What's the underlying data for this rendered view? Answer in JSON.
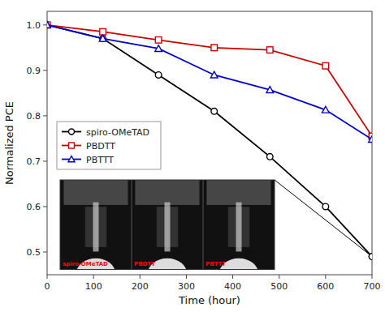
{
  "chart_data": {
    "type": "line",
    "x": [
      0,
      120,
      240,
      360,
      480,
      600,
      700
    ],
    "series": [
      {
        "name": "spiro-OMeTAD",
        "color": "#000000",
        "marker": "circle",
        "values": [
          1.0,
          0.97,
          0.89,
          0.81,
          0.71,
          0.6,
          0.49
        ]
      },
      {
        "name": "PBDTT",
        "color": "#cc0000",
        "marker": "square",
        "values": [
          1.0,
          0.985,
          0.967,
          0.95,
          0.945,
          0.91,
          0.755
        ]
      },
      {
        "name": "PBTTT",
        "color": "#0000cc",
        "marker": "triangle",
        "values": [
          1.0,
          0.97,
          0.948,
          0.89,
          0.857,
          0.813,
          0.748
        ]
      }
    ],
    "xlabel": "Time (hour)",
    "ylabel": "Normalized PCE",
    "xlim": [
      0,
      700
    ],
    "ylim": [
      0.45,
      1.03
    ],
    "xticks": [
      0,
      100,
      200,
      300,
      400,
      500,
      600,
      700
    ],
    "yticks": [
      0.5,
      0.6,
      0.7,
      0.8,
      0.9,
      {
        "value": 1.0,
        "label": "1.0"
      }
    ],
    "grid": false,
    "legend": "center left",
    "annotations": [
      "spiro-OMeTAD",
      "PBDTT",
      "PBTTT"
    ]
  }
}
